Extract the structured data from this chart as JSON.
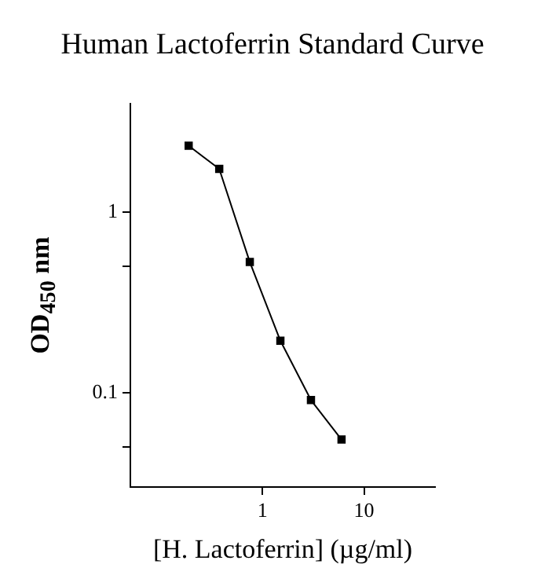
{
  "chart_data": {
    "type": "line",
    "title": "Human Lactoferrin Standard Curve",
    "xlabel": "[H. Lactoferrin] (µg/ml)",
    "ylabel": "OD$_{450}$ nm",
    "x": [
      0.1875,
      0.375,
      0.75,
      1.5,
      3,
      6
    ],
    "series": [
      {
        "color": "#000000",
        "values": [
          2.34,
          1.74,
          0.53,
          0.194,
          0.091,
          0.055
        ]
      }
    ],
    "log": "xy",
    "xlim": [
      0.05,
      50
    ],
    "xticks": [
      1,
      10
    ],
    "ylim": [
      0.03,
      4
    ],
    "yticks": [
      {
        "value": 0.05,
        "label": null
      },
      0.1,
      {
        "value": 0.5,
        "label": null
      },
      1
    ],
    "grid": false,
    "legend": false,
    "marker": "square",
    "line_style": "solid"
  }
}
